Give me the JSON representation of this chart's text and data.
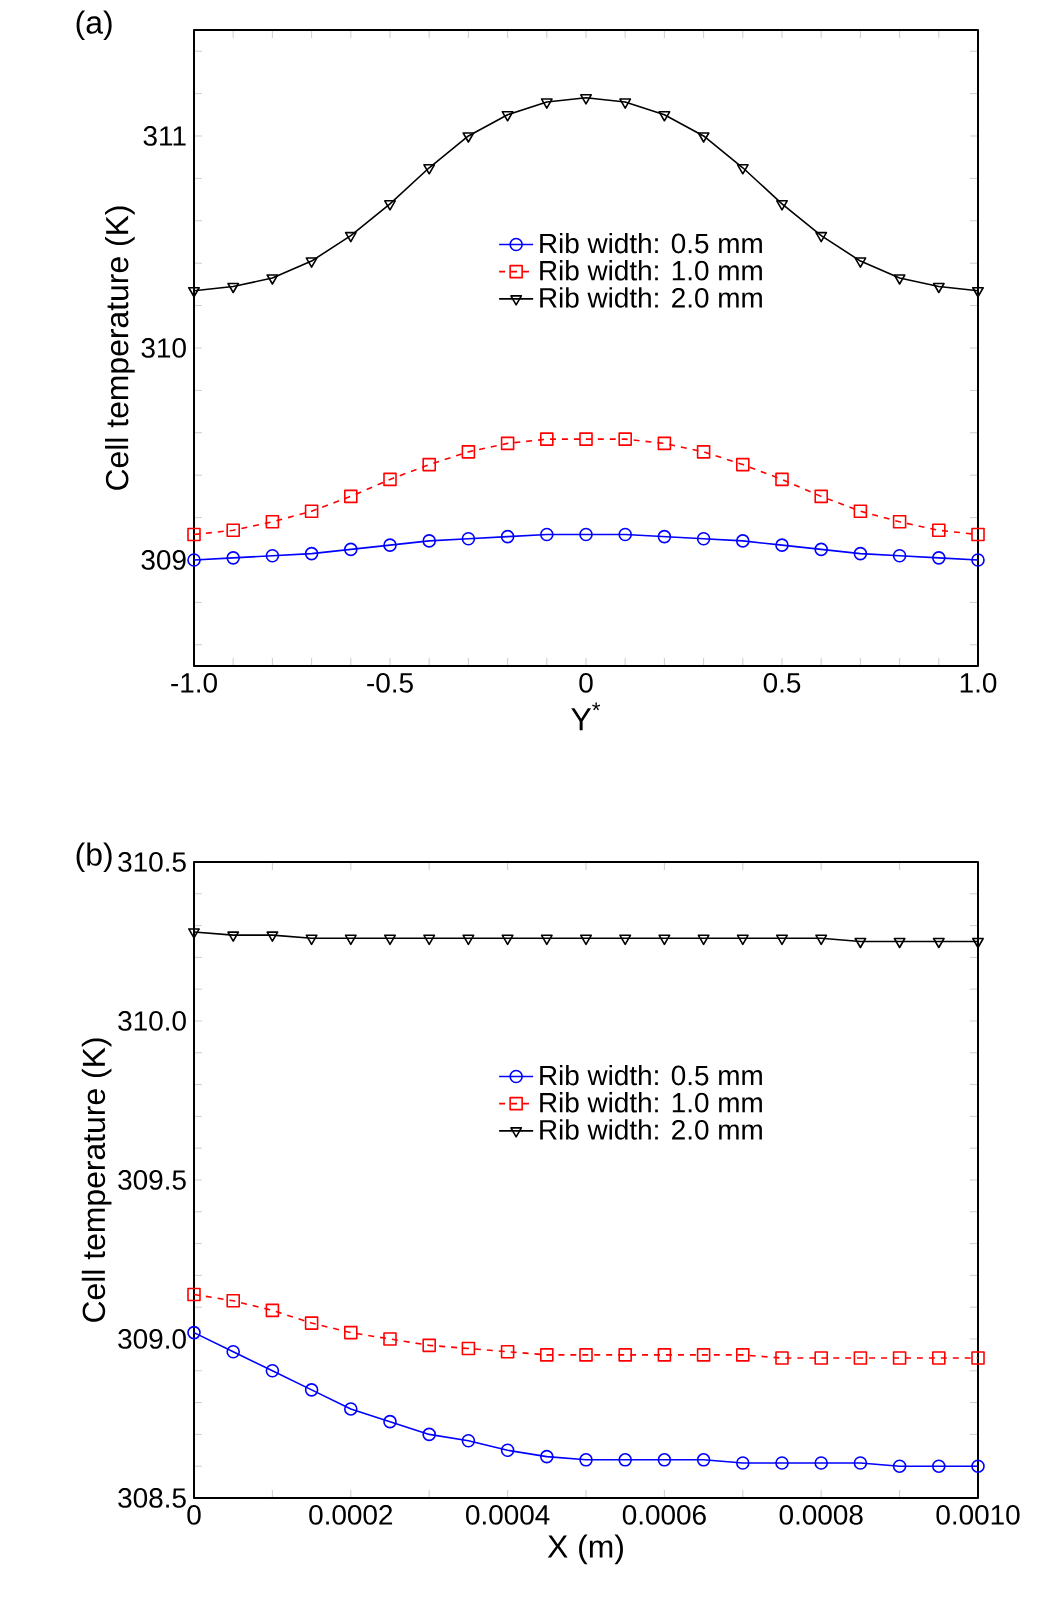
{
  "chart_data": [
    {
      "type": "line",
      "title": "(a)",
      "xlabel": "Y$^{*}$",
      "ylabel": "Cell temperature (K)",
      "x": [
        -1.0,
        -0.9,
        -0.8,
        -0.7,
        -0.6,
        -0.5,
        -0.4,
        -0.3,
        -0.2,
        -0.1,
        0.0,
        0.1,
        0.2,
        0.3,
        0.4,
        0.5,
        0.6,
        0.7,
        0.8,
        0.9,
        1.0
      ],
      "series": [
        {
          "name": "Rib width: 0.5 mm",
          "color": "#0000ff",
          "marker": "circle",
          "line_style": "solid",
          "values": [
            309.0,
            309.01,
            309.02,
            309.03,
            309.05,
            309.07,
            309.09,
            309.1,
            309.11,
            309.12,
            309.12,
            309.12,
            309.11,
            309.1,
            309.09,
            309.07,
            309.05,
            309.03,
            309.02,
            309.01,
            309.0
          ]
        },
        {
          "name": "Rib width: 1.0 mm",
          "color": "#ff0000",
          "marker": "square",
          "line_style": "dashed",
          "values": [
            309.12,
            309.14,
            309.18,
            309.23,
            309.3,
            309.38,
            309.45,
            309.51,
            309.55,
            309.57,
            309.57,
            309.57,
            309.55,
            309.51,
            309.45,
            309.38,
            309.3,
            309.23,
            309.18,
            309.14,
            309.12
          ]
        },
        {
          "name": "Rib width: 2.0 mm",
          "color": "#000000",
          "marker": "triangle",
          "line_style": "solid",
          "values": [
            310.27,
            310.29,
            310.33,
            310.41,
            310.53,
            310.68,
            310.85,
            311.0,
            311.1,
            311.16,
            311.18,
            311.16,
            311.1,
            311.0,
            310.85,
            310.68,
            310.53,
            310.41,
            310.33,
            310.29,
            310.27
          ]
        }
      ],
      "xlim": [
        -1.0,
        1.0
      ],
      "ylim": [
        308.5,
        311.5
      ],
      "xticks": [
        {
          "value": -1.0,
          "label": "-1.0"
        },
        {
          "value": -0.9,
          "label": null
        },
        {
          "value": -0.8,
          "label": null
        },
        {
          "value": -0.7,
          "label": null
        },
        {
          "value": -0.6,
          "label": null
        },
        -0.5,
        {
          "value": -0.4,
          "label": null
        },
        {
          "value": -0.3,
          "label": null
        },
        {
          "value": -0.2,
          "label": null
        },
        {
          "value": -0.1,
          "label": null
        },
        0,
        {
          "value": 0.1,
          "label": null
        },
        {
          "value": 0.2,
          "label": null
        },
        {
          "value": 0.3,
          "label": null
        },
        {
          "value": 0.4,
          "label": null
        },
        0.5,
        {
          "value": 0.6,
          "label": null
        },
        {
          "value": 0.7,
          "label": null
        },
        {
          "value": 0.8,
          "label": null
        },
        {
          "value": 0.9,
          "label": null
        },
        {
          "value": 1.0,
          "label": "1.0"
        }
      ],
      "yticks": [
        {
          "value": 308.6,
          "label": null
        },
        {
          "value": 308.8,
          "label": null
        },
        309,
        {
          "value": 309.2,
          "label": null
        },
        {
          "value": 309.4,
          "label": null
        },
        {
          "value": 309.6,
          "label": null
        },
        {
          "value": 309.8,
          "label": null
        },
        310,
        {
          "value": 310.2,
          "label": null
        },
        {
          "value": 310.4,
          "label": null
        },
        {
          "value": 310.6,
          "label": null
        },
        {
          "value": 310.8,
          "label": null
        },
        311,
        {
          "value": 311.2,
          "label": null
        },
        {
          "value": 311.4,
          "label": null
        }
      ],
      "legend": "center",
      "grid": false
    },
    {
      "type": "line",
      "title": "(b)",
      "xlabel": "X (m)",
      "ylabel": "Cell temperature (K)",
      "x": [
        0,
        5e-05,
        0.0001,
        0.00015,
        0.0002,
        0.00025,
        0.0003,
        0.00035,
        0.0004,
        0.00045,
        0.0005,
        0.00055,
        0.0006,
        0.00065,
        0.0007,
        0.00075,
        0.0008,
        0.00085,
        0.0009,
        0.00095,
        0.001
      ],
      "series": [
        {
          "name": "Rib width: 0.5 mm",
          "color": "#0000ff",
          "marker": "circle",
          "line_style": "solid",
          "values": [
            309.02,
            308.96,
            308.9,
            308.84,
            308.78,
            308.74,
            308.7,
            308.68,
            308.65,
            308.63,
            308.62,
            308.62,
            308.62,
            308.62,
            308.61,
            308.61,
            308.61,
            308.61,
            308.6,
            308.6,
            308.6
          ]
        },
        {
          "name": "Rib width: 1.0 mm",
          "color": "#ff0000",
          "marker": "square",
          "line_style": "dashed",
          "values": [
            309.14,
            309.12,
            309.09,
            309.05,
            309.02,
            309.0,
            308.98,
            308.97,
            308.96,
            308.95,
            308.95,
            308.95,
            308.95,
            308.95,
            308.95,
            308.94,
            308.94,
            308.94,
            308.94,
            308.94,
            308.94
          ]
        },
        {
          "name": "Rib width: 2.0 mm",
          "color": "#000000",
          "marker": "triangle",
          "line_style": "solid",
          "values": [
            310.28,
            310.27,
            310.27,
            310.26,
            310.26,
            310.26,
            310.26,
            310.26,
            310.26,
            310.26,
            310.26,
            310.26,
            310.26,
            310.26,
            310.26,
            310.26,
            310.26,
            310.25,
            310.25,
            310.25,
            310.25
          ]
        }
      ],
      "xlim": [
        0,
        0.001
      ],
      "ylim": [
        308.5,
        310.5
      ],
      "xticks": [
        0,
        {
          "value": 0.0001,
          "label": null
        },
        0.0002,
        {
          "value": 0.0003,
          "label": null
        },
        0.0004,
        {
          "value": 0.0005,
          "label": null
        },
        0.0006,
        {
          "value": 0.0007,
          "label": null
        },
        0.0008,
        {
          "value": 0.0009,
          "label": null
        },
        {
          "value": 0.001,
          "label": "0.0010"
        }
      ],
      "yticks": [
        {
          "value": 308.5,
          "label": "308.5"
        },
        {
          "value": 308.6,
          "label": null
        },
        {
          "value": 308.7,
          "label": null
        },
        {
          "value": 308.8,
          "label": null
        },
        {
          "value": 308.9,
          "label": null
        },
        {
          "value": 309.0,
          "label": "309.0"
        },
        {
          "value": 309.1,
          "label": null
        },
        {
          "value": 309.2,
          "label": null
        },
        {
          "value": 309.3,
          "label": null
        },
        {
          "value": 309.4,
          "label": null
        },
        309.5,
        {
          "value": 309.6,
          "label": null
        },
        {
          "value": 309.7,
          "label": null
        },
        {
          "value": 309.8,
          "label": null
        },
        {
          "value": 309.9,
          "label": null
        },
        {
          "value": 310.0,
          "label": "310.0"
        },
        {
          "value": 310.1,
          "label": null
        },
        {
          "value": 310.2,
          "label": null
        },
        {
          "value": 310.3,
          "label": null
        },
        {
          "value": 310.4,
          "label": null
        },
        310.5
      ],
      "legend": "center",
      "grid": false
    }
  ]
}
